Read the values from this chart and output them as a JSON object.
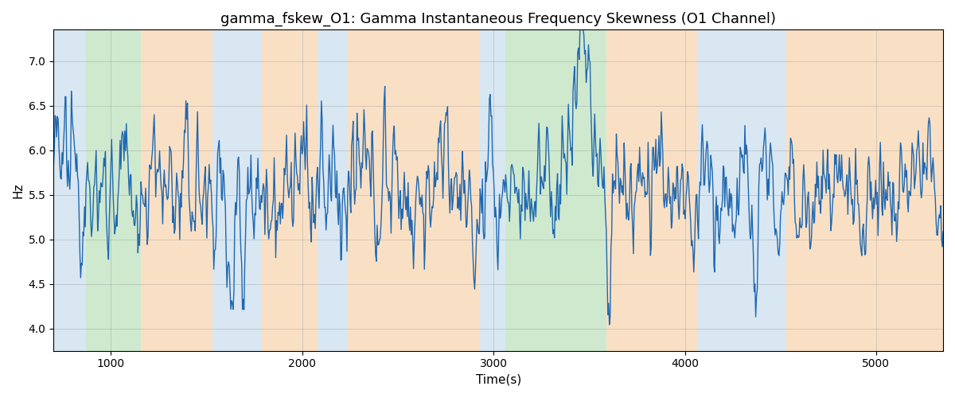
{
  "title": "gamma_fskew_O1: Gamma Instantaneous Frequency Skewness (O1 Channel)",
  "xlabel": "Time(s)",
  "ylabel": "Hz",
  "ylim": [
    3.75,
    7.35
  ],
  "xlim": [
    700,
    5350
  ],
  "line_color": "#2068b0",
  "line_width": 1.0,
  "bg_bands": [
    {
      "xmin": 700,
      "xmax": 870,
      "color": "#b8d4e8",
      "alpha": 0.55
    },
    {
      "xmin": 870,
      "xmax": 1155,
      "color": "#a8d8a8",
      "alpha": 0.55
    },
    {
      "xmin": 1155,
      "xmax": 1530,
      "color": "#f5c896",
      "alpha": 0.55
    },
    {
      "xmin": 1530,
      "xmax": 1790,
      "color": "#b8d4e8",
      "alpha": 0.55
    },
    {
      "xmin": 1790,
      "xmax": 2080,
      "color": "#f5c896",
      "alpha": 0.55
    },
    {
      "xmin": 2080,
      "xmax": 2240,
      "color": "#b8d4e8",
      "alpha": 0.55
    },
    {
      "xmin": 2240,
      "xmax": 2930,
      "color": "#f5c896",
      "alpha": 0.55
    },
    {
      "xmin": 2930,
      "xmax": 3060,
      "color": "#b8d4e8",
      "alpha": 0.55
    },
    {
      "xmin": 3060,
      "xmax": 3080,
      "color": "#a8d8a8",
      "alpha": 0.55
    },
    {
      "xmin": 3080,
      "xmax": 3590,
      "color": "#a8d8a8",
      "alpha": 0.55
    },
    {
      "xmin": 3590,
      "xmax": 4070,
      "color": "#f5c896",
      "alpha": 0.55
    },
    {
      "xmin": 4070,
      "xmax": 4530,
      "color": "#b8d4e8",
      "alpha": 0.55
    },
    {
      "xmin": 4530,
      "xmax": 5350,
      "color": "#f5c896",
      "alpha": 0.55
    }
  ],
  "yticks": [
    4.0,
    4.5,
    5.0,
    5.5,
    6.0,
    6.5,
    7.0
  ],
  "xticks": [
    1000,
    2000,
    3000,
    4000,
    5000
  ],
  "title_fontsize": 13,
  "label_fontsize": 11,
  "grid_color": "gray",
  "grid_alpha": 0.4,
  "grid_linewidth": 0.5,
  "seed": 12345,
  "n_points": 1150,
  "t_start": 700,
  "t_end": 5350,
  "base": 5.52,
  "ar_coef": 0.72,
  "noise_std": 0.22
}
